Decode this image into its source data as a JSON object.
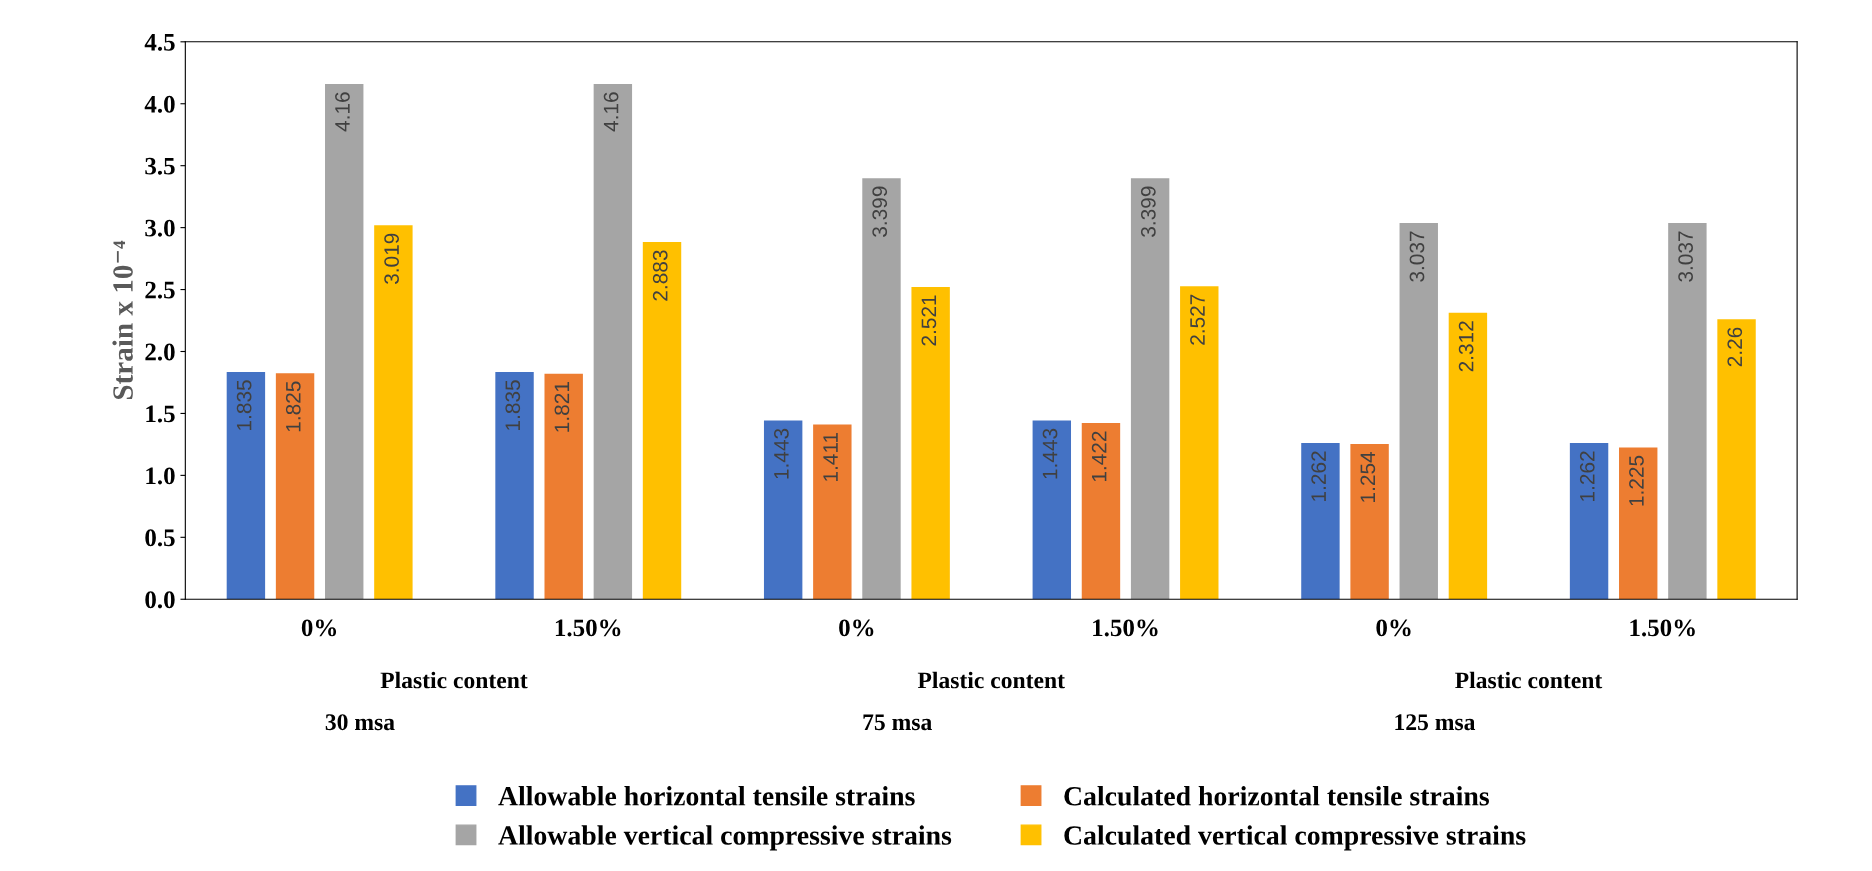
{
  "chart_data": {
    "type": "bar",
    "ylabel": "Strain x 10⁻⁴",
    "categories": [
      "0%",
      "1.50%",
      "0%",
      "1.50%",
      "0%",
      "1.50%"
    ],
    "annotations": [
      "Plastic content",
      "30 msa",
      "Plastic content",
      "75 msa",
      "Plastic content",
      "125 msa"
    ],
    "series": [
      {
        "name": "Allowable horizontal tensile strains",
        "color": "#4472c4",
        "values": [
          1.835,
          1.835,
          1.443,
          1.443,
          1.262,
          1.262
        ]
      },
      {
        "name": "Calculated horizontal tensile strains",
        "color": "#ed7d31",
        "values": [
          1.825,
          1.821,
          1.411,
          1.422,
          1.254,
          1.225
        ]
      },
      {
        "name": "Allowable vertical compressive strains",
        "color": "#a5a5a5",
        "values": [
          4.16,
          4.16,
          3.399,
          3.399,
          3.037,
          3.037
        ]
      },
      {
        "name": "Calculated vertical compressive strains",
        "color": "#ffc000",
        "values": [
          3.019,
          2.883,
          2.521,
          2.527,
          2.312,
          2.26
        ]
      }
    ],
    "ylim": [
      0,
      4.5
    ],
    "yticks": [
      {
        "value": 0,
        "label": "0.0"
      },
      {
        "value": 0.5,
        "label": "0.5"
      },
      {
        "value": 1,
        "label": "1.0"
      },
      {
        "value": 1.5,
        "label": "1.5"
      },
      {
        "value": 2,
        "label": "2.0"
      },
      {
        "value": 2.5,
        "label": "2.5"
      },
      {
        "value": 3,
        "label": "3.0"
      },
      {
        "value": 3.5,
        "label": "3.5"
      },
      {
        "value": 4,
        "label": "4.0"
      },
      {
        "value": 4.5,
        "label": "4.5"
      }
    ],
    "data_labels": true,
    "grid": false,
    "legend": "bottom"
  }
}
